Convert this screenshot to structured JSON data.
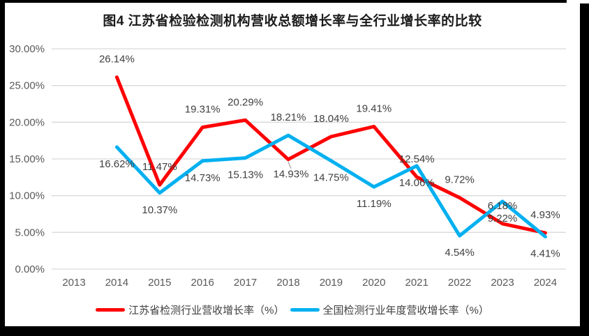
{
  "title": "图4 江苏省检验检测机构营收总额增长率与全行业增长率的比较",
  "chart_data": {
    "type": "line",
    "categories": [
      "2013",
      "2014",
      "2015",
      "2016",
      "2017",
      "2018",
      "2019",
      "2020",
      "2021",
      "2022",
      "2023",
      "2024"
    ],
    "series": [
      {
        "name": "江苏省检测行业营收增长率（%）",
        "color": "#FF0000",
        "values": [
          null,
          26.14,
          11.47,
          19.31,
          20.29,
          14.93,
          18.04,
          19.41,
          12.54,
          9.72,
          6.18,
          4.93
        ],
        "label_sides": [
          null,
          "above",
          "above",
          "above",
          "above",
          "leader-below",
          "above",
          "above",
          "above",
          "above",
          "above",
          "above"
        ]
      },
      {
        "name": "全国检测行业年度营收增长率（%）",
        "color": "#00B0F0",
        "values": [
          null,
          16.62,
          10.37,
          14.73,
          15.13,
          18.21,
          14.75,
          11.19,
          14.06,
          4.54,
          9.22,
          4.41
        ],
        "label_sides": [
          null,
          "below",
          "below",
          "below",
          "below",
          "above",
          "below",
          "below",
          "below",
          "below",
          "below",
          "below"
        ]
      }
    ],
    "y_ticks": [
      {
        "value": 0,
        "label": "0.00%"
      },
      {
        "value": 5,
        "label": "5.00%"
      },
      {
        "value": 10,
        "label": "10.00%"
      },
      {
        "value": 15,
        "label": "15.00%"
      },
      {
        "value": 20,
        "label": "20.00%"
      },
      {
        "value": 25,
        "label": "25.00%"
      },
      {
        "value": 30,
        "label": "30.00%"
      }
    ],
    "ylim": [
      0,
      30
    ],
    "grid": true,
    "legend_position": "bottom",
    "label_format": "percent-2dp"
  },
  "colors": {
    "grid": "#D9D9D9",
    "axis_text": "#595959",
    "data_label": "#404040",
    "leader_line": "#A6A6A6"
  }
}
